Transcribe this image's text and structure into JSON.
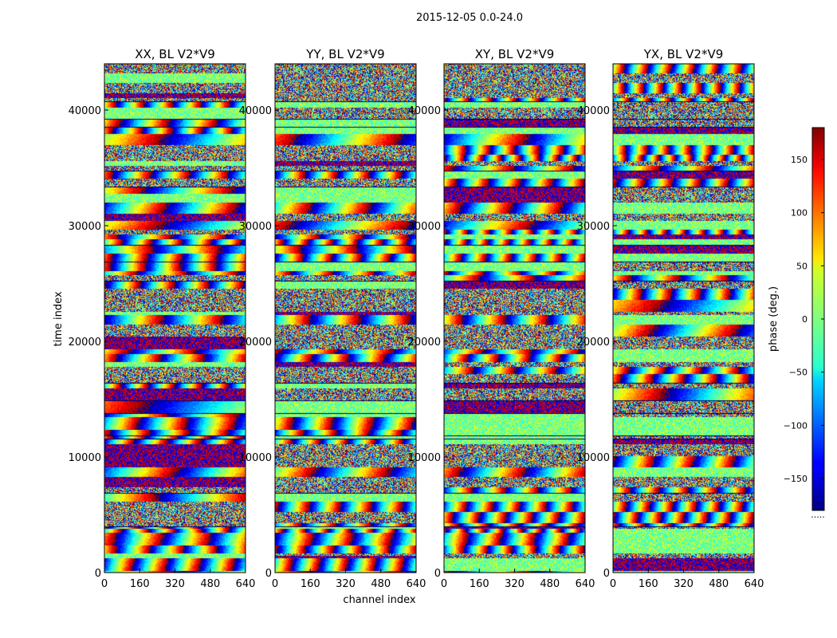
{
  "figure": {
    "suptitle": "2015-12-05 0.0-24.0"
  },
  "chart_data": {
    "type": "heatmap",
    "suptitle": "2015-12-05 0.0-24.0",
    "ylabel": "time index",
    "xlabel": "channel index",
    "colormap": "jet",
    "xlim": [
      0,
      640
    ],
    "ylim": [
      0,
      44000
    ],
    "x_ticks": [
      0,
      160,
      320,
      480,
      640
    ],
    "y_ticks": [
      0,
      10000,
      20000,
      30000,
      40000
    ],
    "panels": [
      {
        "title": "XX, BL V2*V9",
        "x_ticks": [
          "0",
          "160",
          "320",
          "480",
          "640"
        ],
        "y_ticks": [
          "0",
          "10000",
          "20000",
          "30000",
          "40000"
        ]
      },
      {
        "title": "YY, BL V2*V9",
        "x_ticks": [
          "0",
          "160",
          "320",
          "480",
          "640"
        ],
        "y_ticks": [
          "0",
          "10000",
          "20000",
          "30000",
          "40000"
        ]
      },
      {
        "title": "XY, BL V2*V9",
        "x_ticks": [
          "0",
          "160",
          "320",
          "480",
          "640"
        ],
        "y_ticks": [
          "0",
          "10000",
          "20000",
          "30000",
          "40000"
        ]
      },
      {
        "title": "YX, BL V2*V9",
        "x_ticks": [
          "0",
          "160",
          "320",
          "480",
          "640"
        ],
        "y_ticks": [
          "0",
          "10000",
          "20000",
          "30000",
          "40000"
        ]
      }
    ],
    "colorbar": {
      "label": "phase (deg.)",
      "range": [
        -180,
        180
      ],
      "ticks": [
        150,
        100,
        50,
        0,
        -50,
        -100,
        -150
      ],
      "tick_labels": [
        "150",
        "100",
        "50",
        "0",
        "−50",
        "−100",
        "−150"
      ],
      "below_label": "....."
    }
  }
}
